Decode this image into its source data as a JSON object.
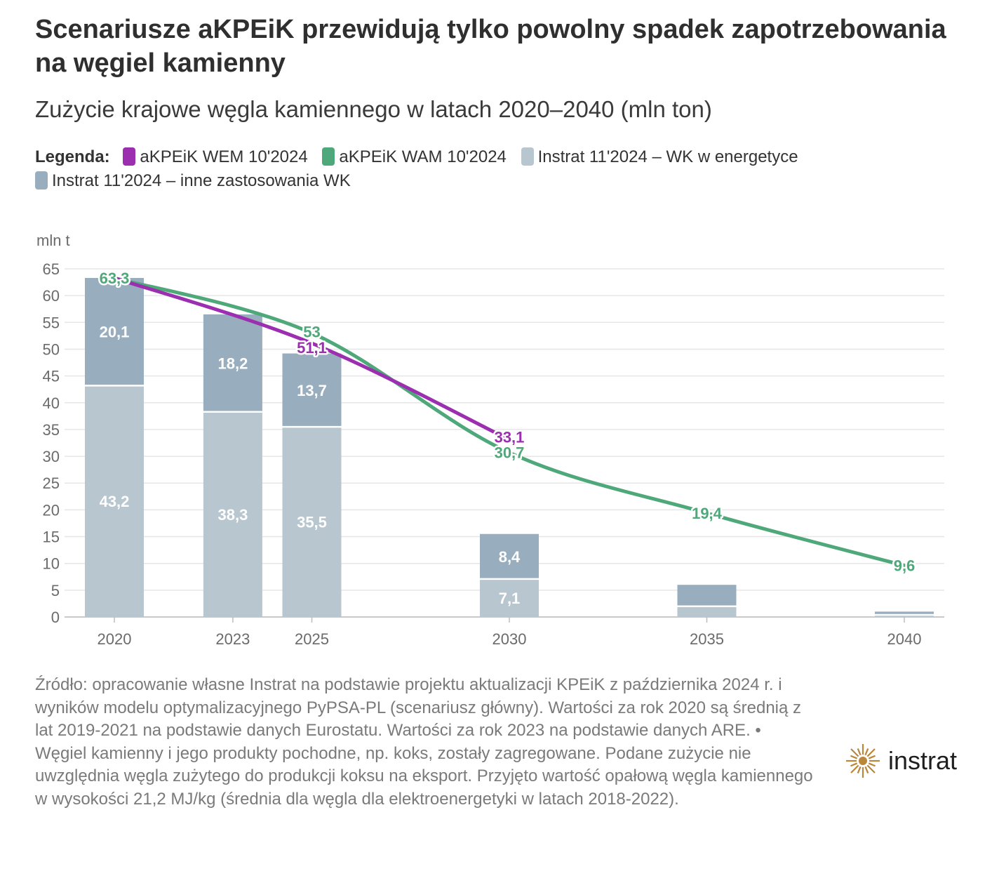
{
  "title": "Scenariusze aKPEiK przewidują tylko powolny spadek zapotrzebowania na węgiel kamienny",
  "subtitle": "Zużycie krajowe węgla kamiennego w latach 2020–2040 (mln ton)",
  "legend": {
    "title": "Legenda:",
    "items": [
      {
        "label": "aKPEiK WEM 10'2024",
        "color": "#9b2fb0"
      },
      {
        "label": "aKPEiK WAM 10'2024",
        "color": "#4ea87a"
      },
      {
        "label": "Instrat 11'2024 – WK w energetyce",
        "color": "#b8c6cf"
      },
      {
        "label": "Instrat 11'2024 – inne zastosowania WK",
        "color": "#98adbd"
      }
    ]
  },
  "chart_data": {
    "type": "bar",
    "ylabel": "mln t",
    "xlabel": "",
    "ylim": [
      0,
      65
    ],
    "yticks": [
      0,
      5,
      10,
      15,
      20,
      25,
      30,
      35,
      40,
      45,
      50,
      55,
      60,
      65
    ],
    "x_ticks": [
      2020,
      2023,
      2025,
      2030,
      2035,
      2040
    ],
    "grid": true,
    "stacked_bars": {
      "x": [
        2020,
        2023,
        2025,
        2030,
        2035,
        2040
      ],
      "series": [
        {
          "name": "Instrat 11'2024 – WK w energetyce",
          "color": "#b8c6cf",
          "values": [
            43.2,
            38.3,
            35.5,
            7.1,
            2.0,
            0.4
          ],
          "labels": [
            "43,2",
            "38,3",
            "35,5",
            "7,1",
            "",
            ""
          ]
        },
        {
          "name": "Instrat 11'2024 – inne zastosowania WK",
          "color": "#98adbd",
          "values": [
            20.1,
            18.2,
            13.7,
            8.4,
            4.0,
            0.6
          ],
          "labels": [
            "20,1",
            "18,2",
            "13,7",
            "8,4",
            "",
            ""
          ]
        }
      ]
    },
    "lines": [
      {
        "name": "aKPEiK WEM 10'2024",
        "color": "#9b2fb0",
        "x": [
          2020,
          2025,
          2030
        ],
        "y": [
          63.3,
          51.1,
          33.1
        ],
        "labels": [
          "",
          "51,1",
          "33,1"
        ]
      },
      {
        "name": "aKPEiK WAM 10'2024",
        "color": "#4ea87a",
        "x": [
          2020,
          2025,
          2030,
          2035,
          2040
        ],
        "y": [
          63.3,
          53,
          30.7,
          19.4,
          9.6
        ],
        "labels": [
          "63,3",
          "53",
          "30,7",
          "19,4",
          "9,6"
        ]
      }
    ]
  },
  "source": "Źródło: opracowanie własne Instrat na podstawie projektu aktualizacji KPEiK z października 2024 r. i wyników modelu optymalizacyjnego PyPSA-PL (scenariusz główny). Wartości za rok 2020 są średnią z lat 2019-2021 na podstawie danych Eurostatu. Wartości za rok 2023 na podstawie danych ARE. • Węgiel kamienny i jego produkty pochodne, np. koks, zostały zagregowane. Podane zużycie nie uwzględnia węgla zużytego do produkcji koksu na eksport. Przyjęto wartość opałową węgla kamiennego w wysokości 21,2 MJ/kg (średnia dla węgla dla elektroenergetyki w latach 2018-2022).",
  "logo": {
    "text": "instrat",
    "color": "#b9873a"
  }
}
